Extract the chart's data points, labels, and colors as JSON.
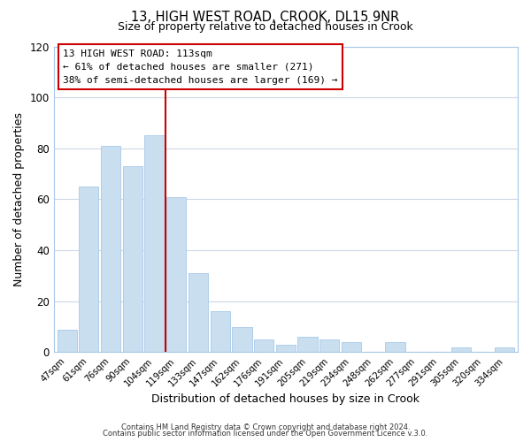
{
  "title": "13, HIGH WEST ROAD, CROOK, DL15 9NR",
  "subtitle": "Size of property relative to detached houses in Crook",
  "xlabel": "Distribution of detached houses by size in Crook",
  "ylabel": "Number of detached properties",
  "bar_color": "#c9dff0",
  "bar_edge_color": "#a8c8e8",
  "categories": [
    "47sqm",
    "61sqm",
    "76sqm",
    "90sqm",
    "104sqm",
    "119sqm",
    "133sqm",
    "147sqm",
    "162sqm",
    "176sqm",
    "191sqm",
    "205sqm",
    "219sqm",
    "234sqm",
    "248sqm",
    "262sqm",
    "277sqm",
    "291sqm",
    "305sqm",
    "320sqm",
    "334sqm"
  ],
  "values": [
    9,
    65,
    81,
    73,
    85,
    61,
    31,
    16,
    10,
    5,
    3,
    6,
    5,
    4,
    0,
    4,
    0,
    0,
    2,
    0,
    2
  ],
  "vline_color": "#cc0000",
  "ylim": [
    0,
    120
  ],
  "yticks": [
    0,
    20,
    40,
    60,
    80,
    100,
    120
  ],
  "annotation_title": "13 HIGH WEST ROAD: 113sqm",
  "annotation_line1": "← 61% of detached houses are smaller (271)",
  "annotation_line2": "38% of semi-detached houses are larger (169) →",
  "footer1": "Contains HM Land Registry data © Crown copyright and database right 2024.",
  "footer2": "Contains public sector information licensed under the Open Government Licence v.3.0.",
  "background_color": "#ffffff",
  "grid_color": "#ccd9e8"
}
